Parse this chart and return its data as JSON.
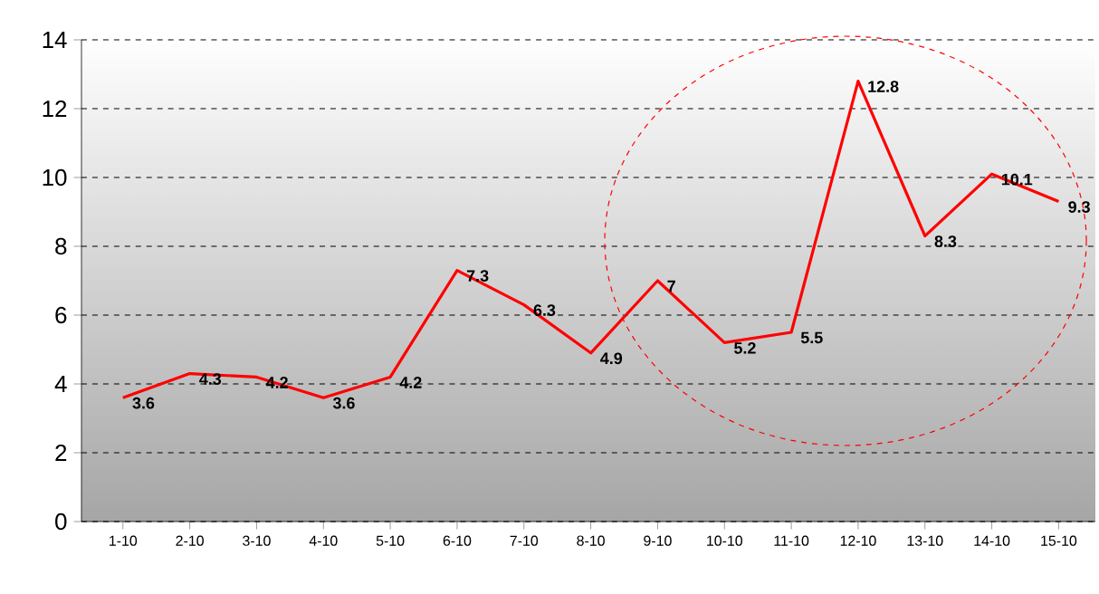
{
  "chart_data": {
    "type": "line",
    "categories": [
      "1-10",
      "2-10",
      "3-10",
      "4-10",
      "5-10",
      "6-10",
      "7-10",
      "8-10",
      "9-10",
      "10-10",
      "11-10",
      "12-10",
      "13-10",
      "14-10",
      "15-10"
    ],
    "series": [
      {
        "color": "#ff0000",
        "values": [
          3.6,
          4.3,
          4.2,
          3.6,
          4.2,
          7.3,
          6.3,
          4.9,
          7,
          5.2,
          5.5,
          12.8,
          8.3,
          10.1,
          9.3
        ]
      }
    ],
    "ylim": [
      0,
      14
    ],
    "yticks": [
      0,
      2,
      4,
      6,
      8,
      10,
      12,
      14
    ],
    "grid": "y",
    "data_labels": true,
    "marker": "none",
    "line_style": "solid"
  }
}
